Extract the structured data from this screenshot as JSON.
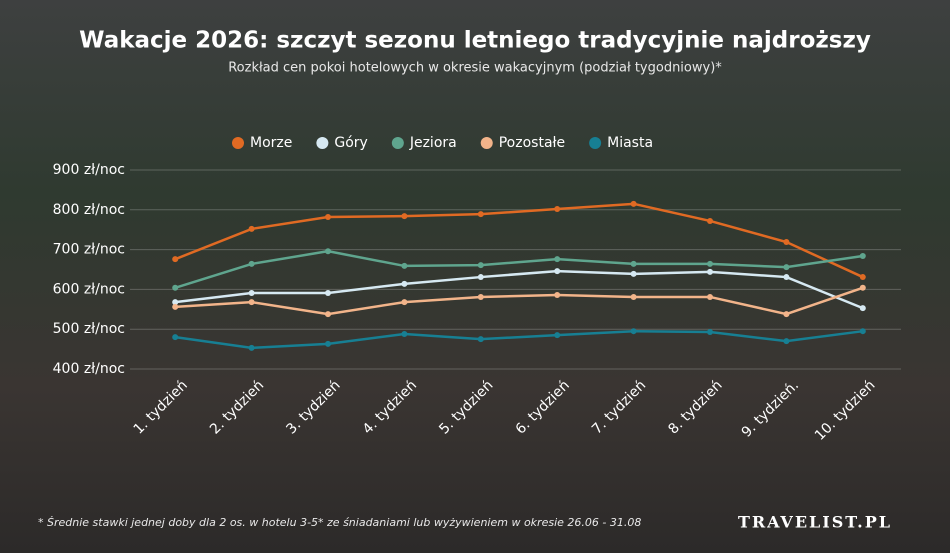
{
  "chart_data": {
    "type": "line",
    "title": "Wakacje 2026: szczyt sezonu letniego tradycyjnie najdroższy",
    "subtitle": "Rozkład cen pokoi hotelowych w okresie wakacyjnym (podział tygodniowy)*",
    "footnote": "* Średnie stawki jednej doby dla 2 os. w hotelu 3-5* ze śniadaniami lub wyżywieniem w okresie 26.06 - 31.08",
    "brand": "TRAVELIST.PL",
    "categories": [
      "1. tydzień",
      "2. tydzień",
      "3. tydzień",
      "4. tydzień",
      "5. tydzień",
      "6. tydzień",
      "7. tydzień",
      "8. tydzień",
      "9. tydzień.",
      "10. tydzień"
    ],
    "series": [
      {
        "name": "Morze",
        "color": "#e06a23",
        "values": [
          676,
          752,
          782,
          784,
          789,
          802,
          815,
          772,
          719,
          631
        ]
      },
      {
        "name": "Góry",
        "color": "#d6e9f2",
        "values": [
          568,
          591,
          591,
          614,
          631,
          646,
          639,
          644,
          631,
          553
        ]
      },
      {
        "name": "Jeziora",
        "color": "#5fa58e",
        "values": [
          604,
          664,
          696,
          659,
          661,
          676,
          664,
          664,
          656,
          684
        ]
      },
      {
        "name": "Pozostałe",
        "color": "#f2b48a",
        "values": [
          556,
          568,
          538,
          568,
          581,
          586,
          581,
          581,
          538,
          604
        ]
      },
      {
        "name": "Miasta",
        "color": "#177f93",
        "values": [
          480,
          453,
          463,
          488,
          475,
          485,
          495,
          493,
          470,
          495
        ]
      }
    ],
    "ylim": [
      400,
      900
    ],
    "yticks": [
      {
        "value": 400,
        "label": "400 zł/noc"
      },
      {
        "value": 500,
        "label": "500 zł/noc"
      },
      {
        "value": 600,
        "label": "600 zł/noc"
      },
      {
        "value": 700,
        "label": "700 zł/noc"
      },
      {
        "value": 800,
        "label": "800 zł/noc"
      },
      {
        "value": 900,
        "label": "900 zł/noc"
      }
    ],
    "grid": true
  }
}
